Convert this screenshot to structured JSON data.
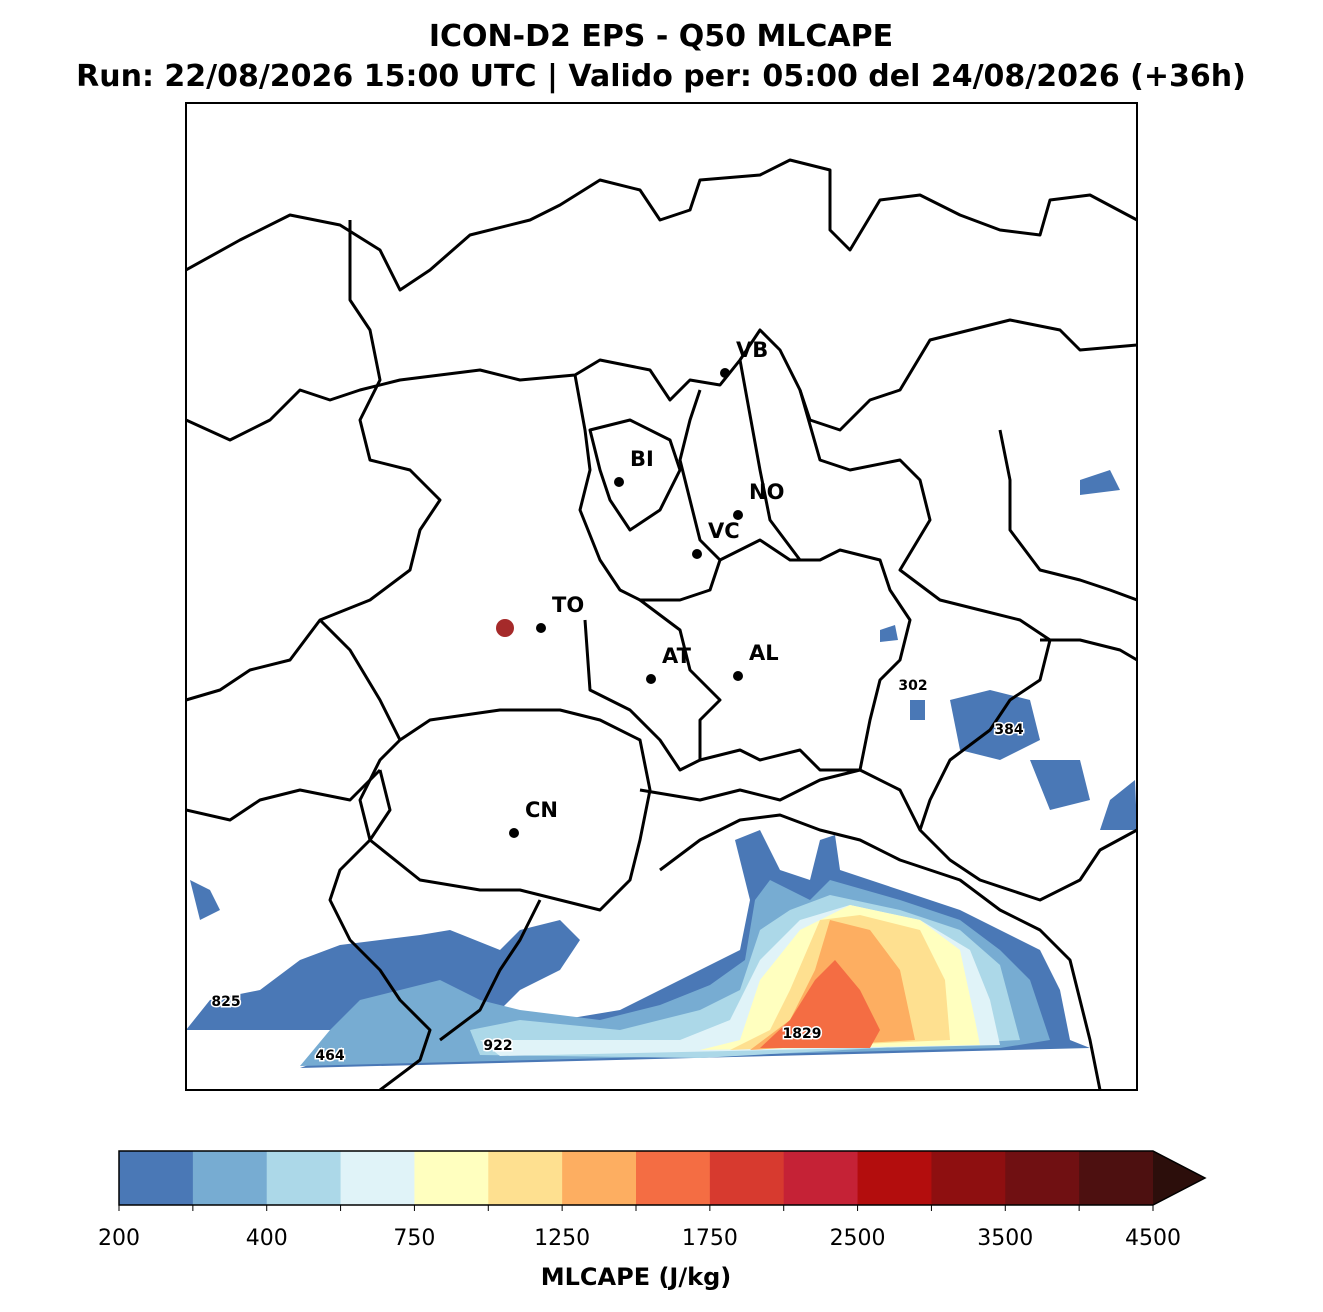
{
  "title": "ICON-D2 EPS - Q50 MLCAPE",
  "subtitle": "Run: 22/08/2026 15:00 UTC | Valido per: 05:00 del 24/08/2026 (+36h)",
  "cities": [
    "VB",
    "BI",
    "NO",
    "VC",
    "TO",
    "AT",
    "AL",
    "CN"
  ],
  "contour_labels": [
    302,
    384,
    825,
    464,
    922,
    1829
  ],
  "colorbar": {
    "label": "MLCAPE (J/kg)",
    "colors": [
      "#4a78b6",
      "#77acd2",
      "#acd8e8",
      "#e0f3f8",
      "#ffffbf",
      "#fee090",
      "#fdae61",
      "#f46d43",
      "#d73a2f",
      "#c52236",
      "#b30d0d",
      "#8e0f10",
      "#701012",
      "#4d1010",
      "#2c0e0b"
    ],
    "ticks": [
      200,
      400,
      750,
      1250,
      1750,
      2500,
      3500,
      4500
    ]
  }
}
